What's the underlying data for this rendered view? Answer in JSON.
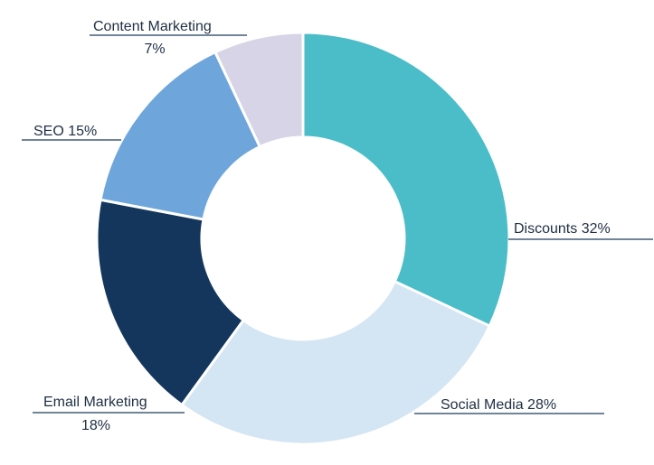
{
  "chart_data": {
    "type": "donut",
    "title": "",
    "start_angle_deg": 0,
    "direction": "clockwise",
    "slices": [
      {
        "name": "Discounts",
        "label": "Discounts  32%",
        "value": 32,
        "color": "#4bbdc8"
      },
      {
        "name": "Social Media",
        "label": "Social Media  28%",
        "value": 28,
        "color": "#d4e5f4"
      },
      {
        "name": "Email Marketing",
        "label": "Email Marketing",
        "label2": "18%",
        "value": 18,
        "color": "#14365d"
      },
      {
        "name": "SEO",
        "label": "SEO  15%",
        "value": 15,
        "color": "#6ea6dc"
      },
      {
        "name": "Content Marketing",
        "label": "Content Marketing",
        "label2": "7%",
        "value": 7,
        "color": "#d6d4e6"
      }
    ],
    "legend": "none",
    "grid": false
  }
}
